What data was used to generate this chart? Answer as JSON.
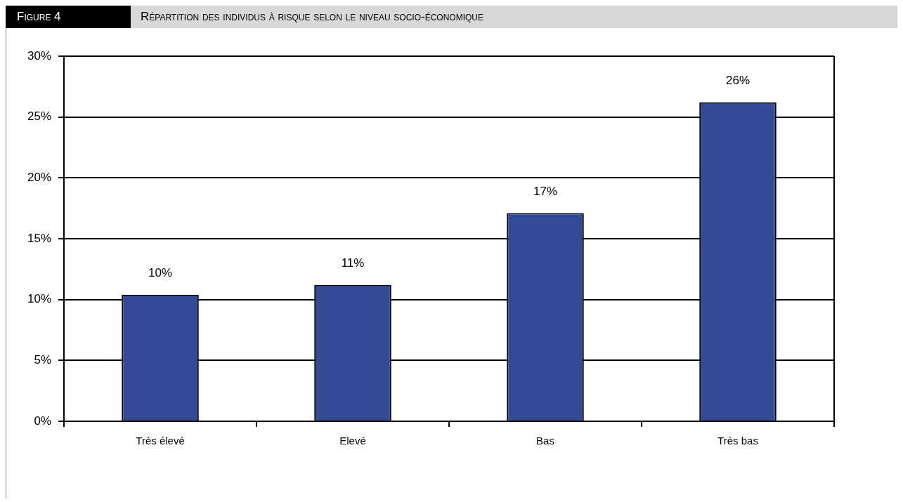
{
  "chart_data": {
    "type": "bar",
    "title": "Figure 4",
    "subtitle": "Répartition des individus à risque selon le niveau socio-économique",
    "categories": [
      "Très élevé",
      "Elevé",
      "Bas",
      "Très bas"
    ],
    "values": [
      10.4,
      11.2,
      17.1,
      26.2
    ],
    "value_labels": [
      "10%",
      "11%",
      "17%",
      "26%"
    ],
    "color": "#334b96",
    "ylim": [
      0,
      30
    ],
    "yticks": [
      {
        "value": 0,
        "label": "0%"
      },
      {
        "value": 5,
        "label": "5%"
      },
      {
        "value": 10,
        "label": "10%"
      },
      {
        "value": 15,
        "label": "15%"
      },
      {
        "value": 20,
        "label": "20%"
      },
      {
        "value": 25,
        "label": "25%"
      },
      {
        "value": 30,
        "label": "30%"
      }
    ],
    "grid": "y",
    "legend": false
  }
}
